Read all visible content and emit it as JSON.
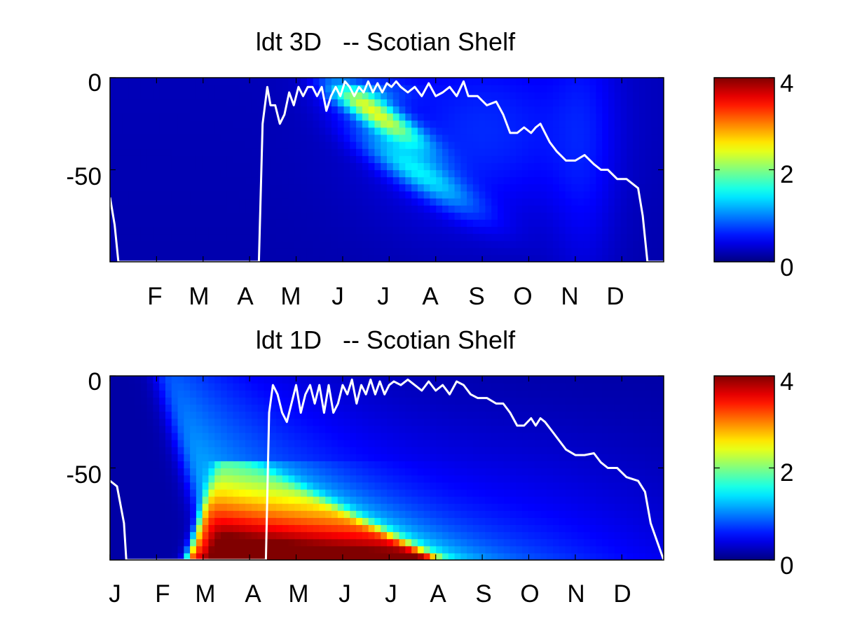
{
  "chart_data": [
    {
      "type": "heatmap",
      "title": "ldt 3D   -- Scotian Shelf",
      "xlabel": "",
      "ylabel": "",
      "x_tick_labels": [
        "F",
        "M",
        "A",
        "M",
        "J",
        "J",
        "A",
        "S",
        "O",
        "N",
        "D"
      ],
      "x_tick_months": [
        2,
        3,
        4,
        5,
        6,
        7,
        8,
        9,
        10,
        11,
        12
      ],
      "xlim_months": [
        1,
        12.9
      ],
      "y_tick_labels": [
        "0",
        "-50"
      ],
      "y_ticks": [
        0,
        -50
      ],
      "ylim": [
        -100,
        0
      ],
      "colorbar": {
        "min": 0,
        "max": 4,
        "tick_labels": [
          "0",
          "2",
          "4"
        ],
        "colormap": "jet"
      },
      "grid": false,
      "blobs": [
        {
          "x": 6.75,
          "y": -20,
          "sx": 0.35,
          "sy": 12,
          "tilt": -0.05,
          "amp": 1.9
        },
        {
          "x": 7.55,
          "y": -50,
          "sx": 0.45,
          "sy": 16,
          "tilt": -0.05,
          "amp": 1.0
        },
        {
          "x": 6.6,
          "y": -8,
          "sx": 0.6,
          "sy": 6,
          "tilt": 0,
          "amp": 0.55
        },
        {
          "x": 9.0,
          "y": -30,
          "sx": 1.6,
          "sy": 35,
          "tilt": 0,
          "amp": 0.45
        },
        {
          "x": 11.2,
          "y": -40,
          "sx": 0.5,
          "sy": 60,
          "tilt": 0,
          "amp": 0.25
        }
      ],
      "white_line": {
        "months": [
          1.0,
          1.1,
          1.18,
          4.2,
          4.28,
          4.38,
          4.45,
          4.55,
          4.65,
          4.75,
          4.85,
          4.95,
          5.05,
          5.15,
          5.25,
          5.35,
          5.45,
          5.55,
          5.65,
          5.75,
          5.85,
          5.95,
          6.05,
          6.15,
          6.25,
          6.35,
          6.45,
          6.55,
          6.65,
          6.75,
          6.85,
          6.95,
          7.05,
          7.15,
          7.25,
          7.4,
          7.55,
          7.7,
          7.85,
          8.0,
          8.15,
          8.3,
          8.45,
          8.6,
          8.7,
          8.9,
          9.1,
          9.3,
          9.45,
          9.6,
          9.75,
          9.9,
          10.05,
          10.15,
          10.25,
          10.35,
          10.45,
          10.6,
          10.8,
          11.0,
          11.2,
          11.4,
          11.55,
          11.7,
          11.9,
          12.1,
          12.35,
          12.45,
          12.55,
          12.9
        ],
        "values": [
          -65,
          -80,
          -100,
          -100,
          -25,
          -5,
          -15,
          -15,
          -25,
          -20,
          -8,
          -15,
          -5,
          -10,
          -5,
          -5,
          -10,
          -5,
          -18,
          -10,
          -5,
          -10,
          -2,
          -5,
          -10,
          -5,
          -8,
          -2,
          -8,
          -3,
          -8,
          -3,
          -5,
          -2,
          -5,
          -8,
          -5,
          -10,
          -3,
          -10,
          -8,
          -5,
          -10,
          -2,
          -10,
          -10,
          -15,
          -13,
          -20,
          -30,
          -30,
          -27,
          -30,
          -27,
          -25,
          -30,
          -35,
          -40,
          -45,
          -45,
          -42,
          -47,
          -50,
          -50,
          -55,
          -55,
          -60,
          -75,
          -100,
          -100
        ]
      }
    },
    {
      "type": "heatmap",
      "title": "ldt 1D   -- Scotian Shelf",
      "xlabel": "",
      "ylabel": "",
      "x_tick_labels": [
        "J",
        "F",
        "M",
        "A",
        "M",
        "J",
        "J",
        "A",
        "S",
        "O",
        "N",
        "D"
      ],
      "x_tick_months": [
        1,
        2,
        3,
        4,
        5,
        6,
        7,
        8,
        9,
        10,
        11,
        12
      ],
      "xlim_months": [
        1,
        12.9
      ],
      "y_tick_labels": [
        "0",
        "-50"
      ],
      "y_ticks": [
        0,
        -50
      ],
      "ylim": [
        -100,
        0
      ],
      "colorbar": {
        "min": 0,
        "max": 4,
        "tick_labels": [
          "0",
          "2",
          "4"
        ],
        "colormap": "jet"
      },
      "grid": false,
      "white_line": {
        "months": [
          1.0,
          1.15,
          1.3,
          1.35,
          4.35,
          4.42,
          4.5,
          4.6,
          4.7,
          4.8,
          4.9,
          5.0,
          5.1,
          5.2,
          5.3,
          5.4,
          5.5,
          5.6,
          5.7,
          5.8,
          5.9,
          6.0,
          6.1,
          6.2,
          6.3,
          6.4,
          6.5,
          6.6,
          6.7,
          6.8,
          6.9,
          7.0,
          7.1,
          7.25,
          7.4,
          7.55,
          7.7,
          7.85,
          8.0,
          8.15,
          8.3,
          8.45,
          8.6,
          8.75,
          8.9,
          9.1,
          9.3,
          9.45,
          9.6,
          9.75,
          9.9,
          10.05,
          10.15,
          10.25,
          10.35,
          10.5,
          10.65,
          10.8,
          11.0,
          11.2,
          11.4,
          11.55,
          11.7,
          11.9,
          12.1,
          12.35,
          12.5,
          12.62,
          12.9
        ],
        "values": [
          -57,
          -60,
          -80,
          -100,
          -100,
          -20,
          -5,
          -10,
          -20,
          -25,
          -15,
          -5,
          -20,
          -10,
          -5,
          -15,
          -5,
          -20,
          -5,
          -20,
          -15,
          -5,
          -10,
          -2,
          -15,
          -5,
          -10,
          -2,
          -10,
          -3,
          -10,
          -5,
          -3,
          -5,
          -2,
          -5,
          -8,
          -3,
          -8,
          -5,
          -10,
          -3,
          -5,
          -10,
          -12,
          -12,
          -15,
          -15,
          -20,
          -27,
          -27,
          -23,
          -27,
          -23,
          -25,
          -30,
          -35,
          -40,
          -43,
          -43,
          -42,
          -47,
          -50,
          -50,
          -55,
          -57,
          -63,
          -80,
          -100
        ]
      }
    }
  ]
}
